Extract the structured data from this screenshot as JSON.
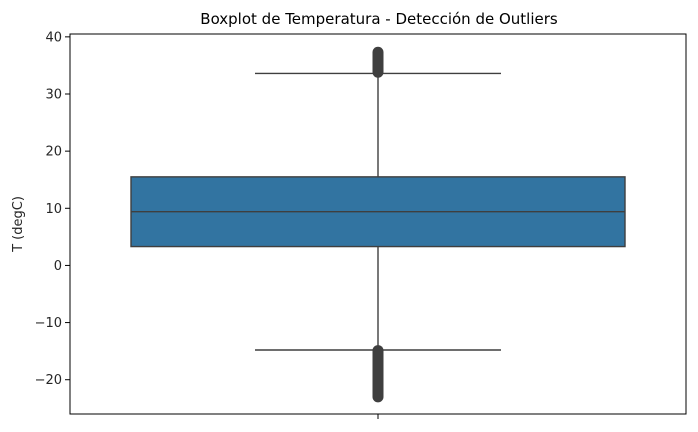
{
  "chart_data": {
    "type": "boxplot",
    "title": "Boxplot de Temperatura - Detección de Outliers",
    "xlabel": "",
    "ylabel": "T (degC)",
    "ylim": [
      -26,
      40.5
    ],
    "yticks": [
      -20,
      -10,
      0,
      10,
      20,
      30,
      40
    ],
    "ytick_labels": [
      "−20",
      "−10",
      "0",
      "10",
      "20",
      "30",
      "40"
    ],
    "grid": false,
    "box": {
      "whisker_low": -14.8,
      "q1": 3.3,
      "median": 9.4,
      "q3": 15.5,
      "whisker_high": 33.6,
      "outliers_high_range": [
        33.8,
        37.3
      ],
      "outliers_low_range": [
        -23.0,
        -14.9
      ]
    },
    "colors": {
      "box_fill": "#3274a1",
      "edge": "#3f3f3f",
      "axis": "#000000"
    }
  }
}
